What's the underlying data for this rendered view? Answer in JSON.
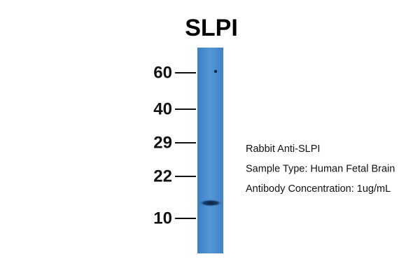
{
  "title": "SLPI",
  "markers": [
    60,
    40,
    29,
    22,
    10
  ],
  "annotations": [
    "Rabbit Anti-SLPI",
    "Sample Type: Human Fetal Brain",
    "Antibody Concentration: 1ug/mL"
  ]
}
